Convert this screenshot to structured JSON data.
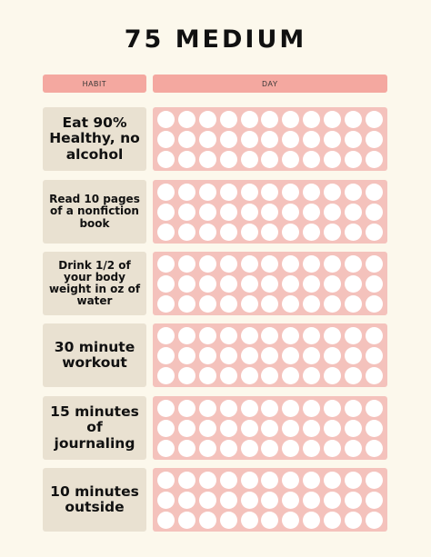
{
  "title": "75 MEDIUM",
  "header": {
    "habit_label": "HABIT",
    "day_label": "DAY"
  },
  "habits": [
    {
      "label": "Eat 90% Healthy, no alcohol"
    },
    {
      "label": "Read 10 pages of a nonfiction book"
    },
    {
      "label": "Drink 1/2 of your body weight in oz of water"
    },
    {
      "label": "30 minute workout"
    },
    {
      "label": "15 minutes of journaling"
    },
    {
      "label": "10 minutes outside"
    }
  ],
  "colors": {
    "background": "#fcf8ec",
    "header_fill": "#f4a8a0",
    "label_fill": "#e9e1d1",
    "grid_fill": "#f4c2bc",
    "circle_fill": "#ffffff"
  }
}
